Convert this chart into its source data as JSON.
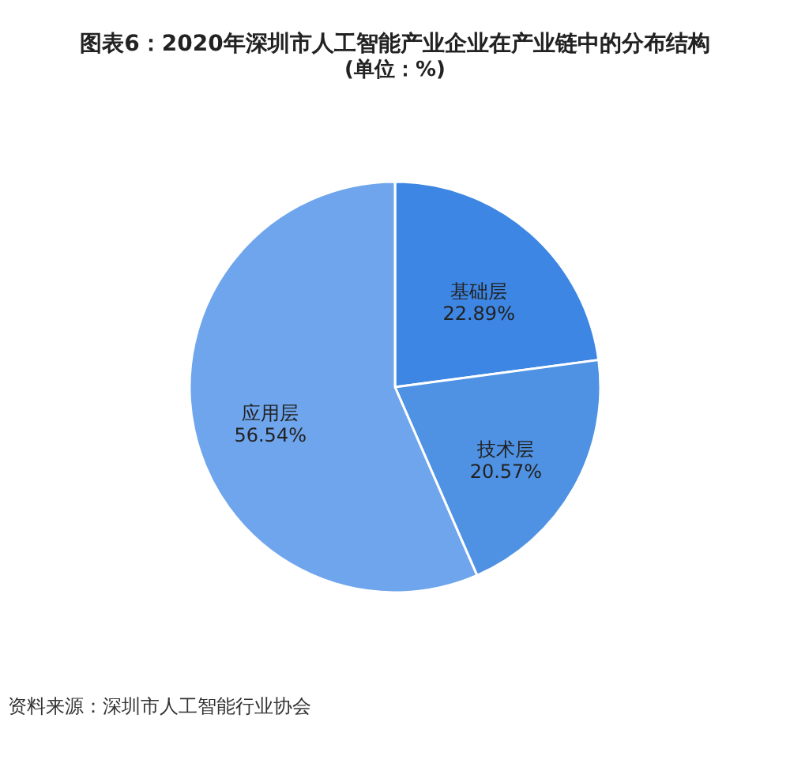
{
  "chart_data": {
    "type": "pie",
    "title": "图表6：2020年深圳市人工智能产业企业在产业链中的分布结构",
    "subtitle": "(单位：%)",
    "categories": [
      "基础层",
      "技术层",
      "应用层"
    ],
    "values": [
      22.89,
      20.57,
      56.54
    ],
    "value_labels": [
      "22.89%",
      "20.57%",
      "56.54%"
    ],
    "colors": [
      "#3d86e3",
      "#4f92e3",
      "#6ea5ec"
    ],
    "legend": false,
    "annotations": [
      "资料来源：深圳市人工智能行业协会"
    ]
  }
}
